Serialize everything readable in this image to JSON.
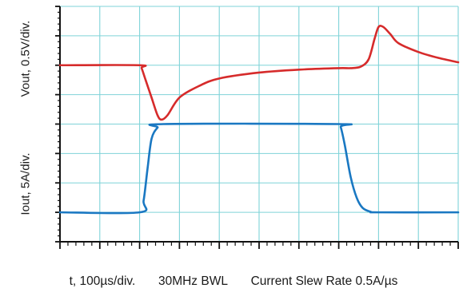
{
  "chart_data": {
    "type": "line",
    "title": "",
    "ylabels": {
      "upper": "Vout, 0.5V/div.",
      "lower": "Iout, 5A/div."
    },
    "footer": {
      "time_scale": "t, 100µs/div.",
      "bandwidth": "30MHz BWL",
      "slew": "Current Slew Rate 0.5A/µs"
    },
    "x_unit": "div",
    "y_unit": "div",
    "xlim": [
      0,
      10
    ],
    "ylim": [
      0,
      8
    ],
    "grid": true,
    "colors": {
      "vout": "#d62b2b",
      "iout": "#1a78c2",
      "grid": "#7fd3d8",
      "axes": "#111111"
    },
    "series": [
      {
        "name": "Vout",
        "color": "#d62b2b",
        "points": [
          [
            0.0,
            6.0
          ],
          [
            2.0,
            6.0
          ],
          [
            2.05,
            5.9
          ],
          [
            2.15,
            5.5
          ],
          [
            2.3,
            4.9
          ],
          [
            2.45,
            4.3
          ],
          [
            2.55,
            4.15
          ],
          [
            2.7,
            4.3
          ],
          [
            3.0,
            4.9
          ],
          [
            3.5,
            5.3
          ],
          [
            4.0,
            5.55
          ],
          [
            5.0,
            5.75
          ],
          [
            6.0,
            5.85
          ],
          [
            7.0,
            5.9
          ],
          [
            7.3,
            5.9
          ],
          [
            7.55,
            5.95
          ],
          [
            7.75,
            6.2
          ],
          [
            7.9,
            6.9
          ],
          [
            8.0,
            7.3
          ],
          [
            8.12,
            7.3
          ],
          [
            8.3,
            7.05
          ],
          [
            8.5,
            6.75
          ],
          [
            9.0,
            6.45
          ],
          [
            9.5,
            6.25
          ],
          [
            10.0,
            6.1
          ]
        ]
      },
      {
        "name": "Iout",
        "color": "#1a78c2",
        "points": [
          [
            0.0,
            1.0
          ],
          [
            2.0,
            1.0
          ],
          [
            2.1,
            1.4
          ],
          [
            2.2,
            2.5
          ],
          [
            2.3,
            3.5
          ],
          [
            2.45,
            3.88
          ],
          [
            2.6,
            4.0
          ],
          [
            7.0,
            4.0
          ],
          [
            7.05,
            3.9
          ],
          [
            7.15,
            3.3
          ],
          [
            7.3,
            2.2
          ],
          [
            7.45,
            1.5
          ],
          [
            7.6,
            1.15
          ],
          [
            7.8,
            1.02
          ],
          [
            8.0,
            1.0
          ],
          [
            10.0,
            1.0
          ]
        ]
      }
    ]
  }
}
